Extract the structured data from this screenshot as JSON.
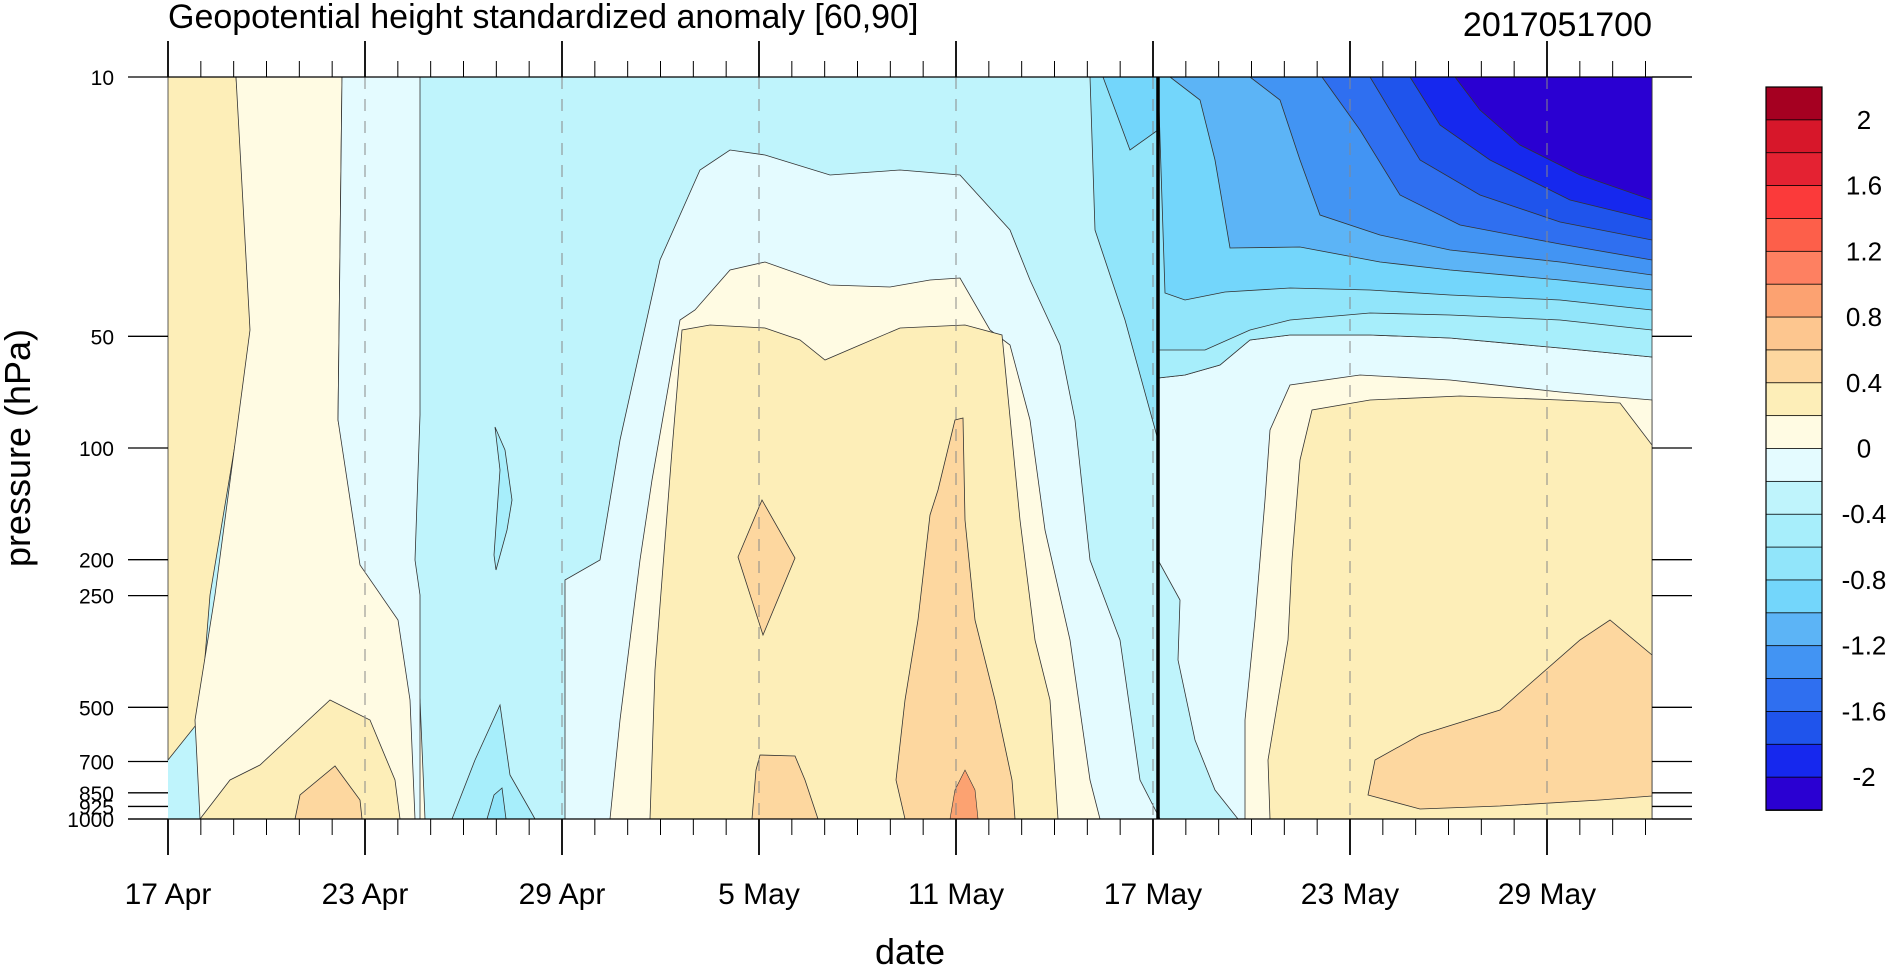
{
  "chart_data": {
    "type": "contour",
    "title": "Geopotential height standardized anomaly [60,90]",
    "subtitle_right": "2017051700",
    "xlabel": "date",
    "ylabel": "pressure (hPa)",
    "x_range": [
      "2017-04-17",
      "2017-06-01"
    ],
    "x_ticks": [
      "17 Apr",
      "23 Apr",
      "29 Apr",
      "5 May",
      "11 May",
      "17 May",
      "23 May",
      "29 May"
    ],
    "y_ticks": [
      "10",
      "50",
      "100",
      "200",
      "250",
      "500",
      "700",
      "850",
      "925",
      "1000"
    ],
    "y_scale": "log",
    "y_reversed": true,
    "y_range_hPa": [
      1000,
      10
    ],
    "marker_date": "17 May",
    "colorbar": {
      "labels": [
        "2",
        "1.6",
        "1.2",
        "0.8",
        "0.4",
        "0",
        "-0.4",
        "-0.8",
        "-1.2",
        "-1.6",
        "-2"
      ],
      "levels": [
        2.2,
        2.0,
        1.8,
        1.6,
        1.4,
        1.2,
        1.0,
        0.8,
        0.6,
        0.4,
        0.2,
        0.0,
        -0.2,
        -0.4,
        -0.6,
        -0.8,
        -1.0,
        -1.2,
        -1.4,
        -1.6,
        -1.8,
        -2.0,
        -2.2
      ],
      "colors": [
        "#a50021",
        "#d7172a",
        "#e42232",
        "#fb3a3a",
        "#fd5f4a",
        "#fe8061",
        "#fca271",
        "#fdc68f",
        "#fdd79f",
        "#fdeeb8",
        "#fffbe3",
        "#e4fbff",
        "#bff4fc",
        "#a7eefb",
        "#91e5fa",
        "#73d6fb",
        "#5cb4f6",
        "#4294f3",
        "#2f6ff0",
        "#1f54ec",
        "#1628ee",
        "#2a00d2"
      ]
    }
  }
}
